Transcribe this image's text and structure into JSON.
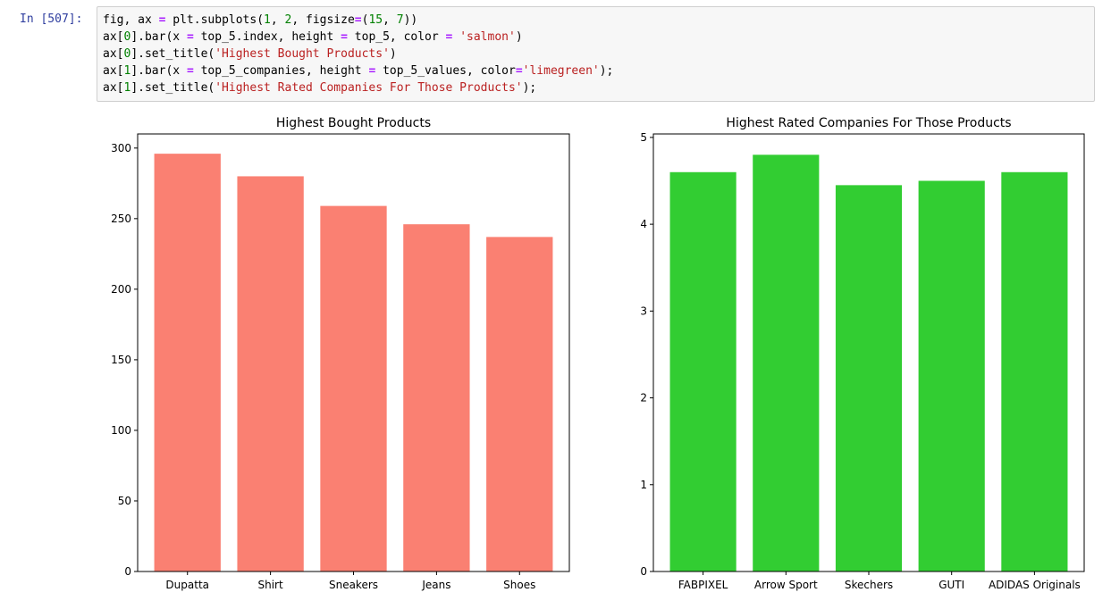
{
  "notebook": {
    "prompt": "In [507]:",
    "code_lines": [
      [
        {
          "t": "fig, ax "
        },
        {
          "t": "=",
          "c": "op"
        },
        {
          "t": " plt.subplots("
        },
        {
          "t": "1",
          "c": "num"
        },
        {
          "t": ", "
        },
        {
          "t": "2",
          "c": "num"
        },
        {
          "t": ", figsize"
        },
        {
          "t": "=",
          "c": "op"
        },
        {
          "t": "("
        },
        {
          "t": "15",
          "c": "num"
        },
        {
          "t": ", "
        },
        {
          "t": "7",
          "c": "num"
        },
        {
          "t": "))"
        }
      ],
      [
        {
          "t": "ax["
        },
        {
          "t": "0",
          "c": "num"
        },
        {
          "t": "].bar(x "
        },
        {
          "t": "=",
          "c": "op"
        },
        {
          "t": " top_5.index, height "
        },
        {
          "t": "=",
          "c": "op"
        },
        {
          "t": " top_5, color "
        },
        {
          "t": "=",
          "c": "op"
        },
        {
          "t": " "
        },
        {
          "t": "'salmon'",
          "c": "str"
        },
        {
          "t": ")"
        }
      ],
      [
        {
          "t": "ax["
        },
        {
          "t": "0",
          "c": "num"
        },
        {
          "t": "].set_title("
        },
        {
          "t": "'Highest Bought Products'",
          "c": "str"
        },
        {
          "t": ")"
        }
      ],
      [
        {
          "t": "ax["
        },
        {
          "t": "1",
          "c": "num"
        },
        {
          "t": "].bar(x "
        },
        {
          "t": "=",
          "c": "op"
        },
        {
          "t": " top_5_companies, height "
        },
        {
          "t": "=",
          "c": "op"
        },
        {
          "t": " top_5_values, color"
        },
        {
          "t": "=",
          "c": "op"
        },
        {
          "t": "'limegreen'",
          "c": "str"
        },
        {
          "t": ");"
        }
      ],
      [
        {
          "t": "ax["
        },
        {
          "t": "1",
          "c": "num"
        },
        {
          "t": "].set_title("
        },
        {
          "t": "'Highest Rated Companies For Those Products'",
          "c": "str"
        },
        {
          "t": ");"
        }
      ]
    ]
  },
  "chart_data": [
    {
      "type": "bar",
      "title": "Highest Bought Products",
      "xlabel": "",
      "ylabel": "",
      "categories": [
        "Dupatta",
        "Shirt",
        "Sneakers",
        "Jeans",
        "Shoes"
      ],
      "values": [
        296,
        280,
        259,
        246,
        237
      ],
      "ylim": [
        0,
        310
      ],
      "yticks": [
        0,
        50,
        100,
        150,
        200,
        250,
        300
      ],
      "color": "#fa8072",
      "grid": false
    },
    {
      "type": "bar",
      "title": "Highest Rated Companies For Those Products",
      "xlabel": "",
      "ylabel": "",
      "categories": [
        "FABPIXEL",
        "Arrow Sport",
        "Skechers",
        "GUTI",
        "ADIDAS Originals"
      ],
      "values": [
        4.6,
        4.8,
        4.45,
        4.5,
        4.6
      ],
      "ylim": [
        0,
        5.04
      ],
      "yticks": [
        0,
        1,
        2,
        3,
        4,
        5
      ],
      "color": "#32cd32",
      "grid": false
    }
  ]
}
